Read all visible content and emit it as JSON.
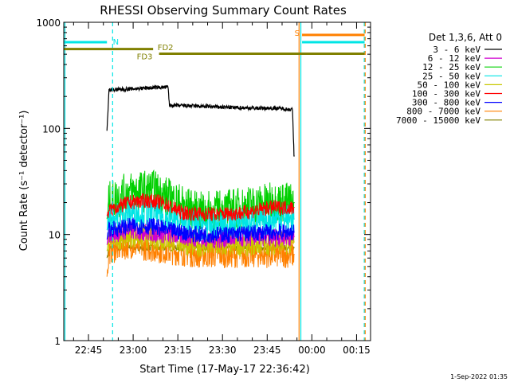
{
  "chart_data": {
    "type": "line",
    "title": "RHESSI Observing Summary Count Rates",
    "xlabel": "Start Time (17-May-17 22:36:42)",
    "ylabel": "Count Rate (s⁻¹ detector⁻¹)",
    "x_unit": "minutes after 22:36:42",
    "xlim": [
      0,
      103
    ],
    "ylim": [
      1,
      1000
    ],
    "y_scale": "log",
    "x_ticks": [
      {
        "x": 8.3,
        "label": "22:45"
      },
      {
        "x": 23.3,
        "label": "23:00"
      },
      {
        "x": 38.3,
        "label": "23:15"
      },
      {
        "x": 53.3,
        "label": "23:30"
      },
      {
        "x": 68.3,
        "label": "23:45"
      },
      {
        "x": 83.3,
        "label": "00:00"
      },
      {
        "x": 98.3,
        "label": "00:15"
      }
    ],
    "y_ticks": [
      {
        "y": 1,
        "label": "1"
      },
      {
        "y": 10,
        "label": "10"
      },
      {
        "y": 100,
        "label": "100"
      },
      {
        "y": 1000,
        "label": "1000"
      }
    ],
    "grid": false,
    "legend_title": "Det 1,3,6, Att 0",
    "legend_position": "right",
    "series": [
      {
        "name": "3 - 6 keV",
        "color": "#000000",
        "t0": 14.5,
        "t1": 77.5,
        "points": [
          [
            14.5,
            95
          ],
          [
            15.2,
            230
          ],
          [
            22,
            235
          ],
          [
            30,
            242
          ],
          [
            35,
            245
          ],
          [
            35.5,
            165
          ],
          [
            45,
            162
          ],
          [
            55,
            158
          ],
          [
            65,
            155
          ],
          [
            72,
            155
          ],
          [
            76.8,
            150
          ],
          [
            77.3,
            55
          ]
        ]
      },
      {
        "name": "6 - 12 keV",
        "color": "#d000d0",
        "t0": 14.5,
        "t1": 77.5,
        "points": [
          [
            14.5,
            8
          ],
          [
            15.2,
            10
          ],
          [
            22,
            11
          ],
          [
            35,
            10
          ],
          [
            50,
            9
          ],
          [
            65,
            9.5
          ],
          [
            77.3,
            9.5
          ]
        ]
      },
      {
        "name": "12 - 25 keV",
        "color": "#00d000",
        "t0": 14.5,
        "t1": 77.5,
        "points": [
          [
            14.5,
            14
          ],
          [
            15.2,
            20
          ],
          [
            22,
            25
          ],
          [
            30,
            26
          ],
          [
            35,
            22
          ],
          [
            45,
            16
          ],
          [
            55,
            17
          ],
          [
            65,
            19
          ],
          [
            72,
            20
          ],
          [
            77.3,
            20
          ]
        ]
      },
      {
        "name": "25 - 50 keV",
        "color": "#00e5e5",
        "t0": 14.5,
        "t1": 77.5,
        "points": [
          [
            14.5,
            11
          ],
          [
            15.2,
            14
          ],
          [
            22,
            16
          ],
          [
            30,
            16
          ],
          [
            35,
            14
          ],
          [
            45,
            12
          ],
          [
            55,
            12.5
          ],
          [
            65,
            13
          ],
          [
            72,
            14
          ],
          [
            77.3,
            14
          ]
        ]
      },
      {
        "name": "50 - 100 keV",
        "color": "#c8c800",
        "t0": 14.5,
        "t1": 77.5,
        "points": [
          [
            14.5,
            7
          ],
          [
            15.2,
            9
          ],
          [
            22,
            10
          ],
          [
            35,
            9
          ],
          [
            45,
            8
          ],
          [
            55,
            8
          ],
          [
            65,
            8.3
          ],
          [
            77.3,
            8.5
          ]
        ]
      },
      {
        "name": "100 - 300 keV",
        "color": "#ff0000",
        "t0": 14.5,
        "t1": 77.5,
        "points": [
          [
            14.5,
            15
          ],
          [
            15.2,
            17
          ],
          [
            22,
            20
          ],
          [
            28,
            21
          ],
          [
            33,
            20
          ],
          [
            40,
            16
          ],
          [
            50,
            15.5
          ],
          [
            60,
            16
          ],
          [
            70,
            18
          ],
          [
            77.3,
            18
          ]
        ]
      },
      {
        "name": "300 - 800 keV",
        "color": "#0000ff",
        "t0": 14.5,
        "t1": 77.5,
        "points": [
          [
            14.5,
            9
          ],
          [
            15.2,
            11
          ],
          [
            22,
            12
          ],
          [
            30,
            12
          ],
          [
            35,
            11
          ],
          [
            45,
            10
          ],
          [
            55,
            10
          ],
          [
            65,
            10.3
          ],
          [
            72,
            10.5
          ],
          [
            77.3,
            10.5
          ]
        ]
      },
      {
        "name": "800 - 7000 keV",
        "color": "#ff8000",
        "t0": 14.5,
        "t1": 77.5,
        "points": [
          [
            14.5,
            4
          ],
          [
            15.2,
            7
          ],
          [
            22,
            8
          ],
          [
            35,
            7
          ],
          [
            45,
            6.5
          ],
          [
            55,
            6.5
          ],
          [
            65,
            6.5
          ],
          [
            77.3,
            6.5
          ]
        ]
      },
      {
        "name": "7000 - 15000 keV",
        "color": "#808000",
        "t0": 14.5,
        "t1": 77.5,
        "points": [
          [
            14.5,
            6
          ],
          [
            15.2,
            7.5
          ],
          [
            35,
            7.5
          ],
          [
            55,
            7.5
          ],
          [
            77.3,
            7.5
          ]
        ]
      }
    ],
    "flag_bars": [
      {
        "label": "N",
        "color": "#00e5e5",
        "y": 650,
        "segments": [
          [
            0,
            14.5
          ],
          [
            80,
            101
          ]
        ],
        "label_x": 16.5,
        "label_y": 660
      },
      {
        "label": "FD2",
        "color": "#808000",
        "y": 560,
        "segments": [
          [
            0,
            30
          ]
        ],
        "label_x": 31.5,
        "label_y": 585
      },
      {
        "label": "FD3",
        "color": "#808000",
        "y": 505,
        "segments": [
          [
            32,
            101
          ]
        ],
        "label_x": 24.5,
        "label_y": 480
      },
      {
        "label": "S",
        "color": "#ff8000",
        "y": 760,
        "segments": [
          [
            80,
            101
          ]
        ],
        "label_x": 77.5,
        "label_y": 800
      }
    ],
    "vertical_markers": [
      {
        "x": 0.4,
        "color": "#00e5e5",
        "style": "solid"
      },
      {
        "x": 16.4,
        "color": "#00e5e5",
        "style": "dashed"
      },
      {
        "x": 79.0,
        "color": "#ff8000",
        "style": "solid"
      },
      {
        "x": 79.6,
        "color": "#00e5e5",
        "style": "solid"
      },
      {
        "x": 100.9,
        "color": "#00e5e5",
        "style": "dashed"
      },
      {
        "x": 101.2,
        "color": "#ff8000",
        "style": "dashed"
      }
    ]
  },
  "footer": {
    "timestamp": "1-Sep-2022 01:35"
  }
}
